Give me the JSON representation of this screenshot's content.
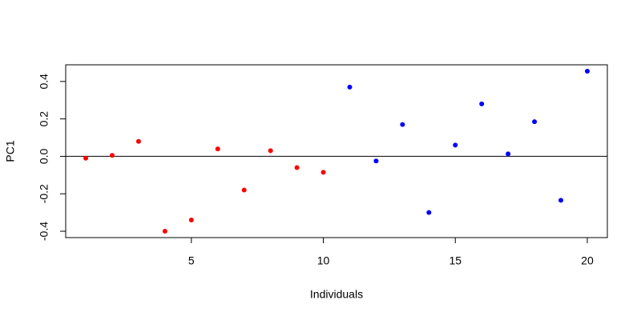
{
  "chart_data": {
    "type": "scatter",
    "x_label": "Individuals",
    "y_label": "PC1",
    "series": [
      {
        "color": "#ff0000",
        "x": [
          1,
          2,
          3,
          4,
          5,
          6,
          7,
          8,
          9,
          10
        ],
        "values": [
          -0.01,
          0.005,
          0.08,
          -0.4,
          -0.34,
          0.04,
          -0.18,
          0.03,
          -0.06,
          -0.085
        ]
      },
      {
        "color": "#0000ff",
        "x": [
          11,
          12,
          13,
          14,
          15,
          16,
          17,
          18,
          19,
          20
        ],
        "values": [
          0.37,
          -0.025,
          0.17,
          -0.3,
          0.06,
          0.28,
          0.013,
          0.185,
          -0.235,
          0.455
        ]
      }
    ],
    "reference_line": 0,
    "xlim": [
      0.24,
      20.76
    ],
    "xticks": [
      5,
      10,
      15,
      20
    ],
    "ylim": [
      -0.434,
      0.489
    ],
    "yticks": [
      -0.4,
      -0.2,
      {
        "value": 0,
        "label": "0.0"
      },
      0.2,
      0.4
    ]
  }
}
